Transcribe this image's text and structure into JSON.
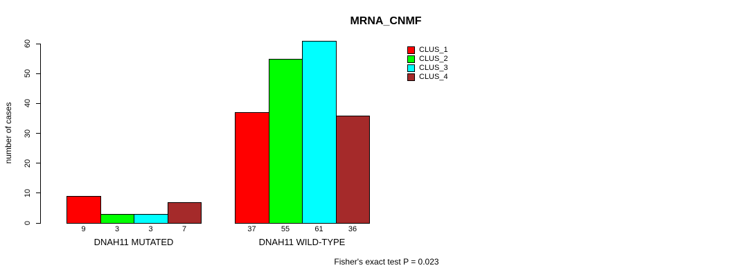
{
  "chart_data": {
    "type": "bar",
    "title": "MRNA_CNMF",
    "ylabel": "number of cases",
    "xlabel": "",
    "ylim": [
      0,
      60
    ],
    "yticks": [
      0,
      10,
      20,
      30,
      40,
      50,
      60
    ],
    "grid": false,
    "legend_position": "top-right",
    "show_bar_values": true,
    "categories": [
      "DNAH11 MUTATED",
      "DNAH11 WILD-TYPE"
    ],
    "series": [
      {
        "name": "CLUS_1",
        "color": "#ff0000",
        "values": [
          9,
          37
        ]
      },
      {
        "name": "CLUS_2",
        "color": "#00ff00",
        "values": [
          3,
          55
        ]
      },
      {
        "name": "CLUS_3",
        "color": "#00ffff",
        "values": [
          3,
          61
        ]
      },
      {
        "name": "CLUS_4",
        "color": "#a52a2a",
        "values": [
          7,
          36
        ]
      }
    ],
    "annotation": "Fisher's exact test P = 0.023"
  }
}
